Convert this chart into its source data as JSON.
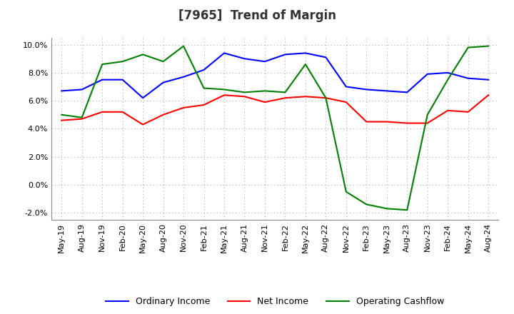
{
  "title": "[7965]  Trend of Margin",
  "x_labels": [
    "May-19",
    "Aug-19",
    "Nov-19",
    "Feb-20",
    "May-20",
    "Aug-20",
    "Nov-20",
    "Feb-21",
    "May-21",
    "Aug-21",
    "Nov-21",
    "Feb-22",
    "May-22",
    "Aug-22",
    "Nov-22",
    "Feb-23",
    "May-23",
    "Aug-23",
    "Nov-23",
    "Feb-24",
    "May-24",
    "Aug-24"
  ],
  "ordinary_income": [
    6.7,
    6.8,
    7.5,
    7.5,
    6.2,
    7.3,
    7.7,
    8.2,
    9.4,
    9.0,
    8.8,
    9.3,
    9.4,
    9.1,
    7.0,
    6.8,
    6.7,
    6.6,
    7.9,
    8.0,
    7.6,
    7.5
  ],
  "net_income": [
    4.6,
    4.7,
    5.2,
    5.2,
    4.3,
    5.0,
    5.5,
    5.7,
    6.4,
    6.3,
    5.9,
    6.2,
    6.3,
    6.2,
    5.9,
    4.5,
    4.5,
    4.4,
    4.4,
    5.3,
    5.2,
    6.4
  ],
  "operating_cashflow": [
    5.0,
    4.8,
    8.6,
    8.8,
    9.3,
    8.8,
    9.9,
    6.9,
    6.8,
    6.6,
    6.7,
    6.6,
    8.6,
    6.2,
    -0.5,
    -1.4,
    -1.7,
    -1.8,
    5.0,
    7.5,
    9.8,
    9.9
  ],
  "ylim": [
    -2.5,
    10.5
  ],
  "yticks": [
    -2.0,
    0.0,
    2.0,
    4.0,
    6.0,
    8.0,
    10.0
  ],
  "ordinary_color": "#0000ff",
  "net_income_color": "#ff0000",
  "cashflow_color": "#008000",
  "bg_color": "#ffffff",
  "grid_color": "#aaaaaa",
  "legend_labels": [
    "Ordinary Income",
    "Net Income",
    "Operating Cashflow"
  ]
}
